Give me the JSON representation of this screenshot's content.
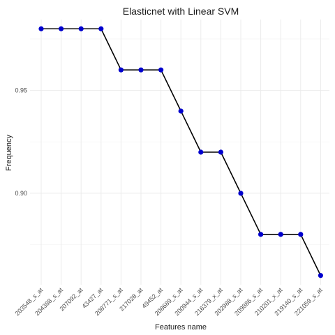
{
  "chart_data": {
    "type": "line",
    "title": "Elasticnet with Linear SVM",
    "xlabel": "Features name",
    "ylabel": "Frequency",
    "categories": [
      "203548_s_at",
      "204388_s_at",
      "207092_at",
      "43427_at",
      "208771_s_at",
      "217028_at",
      "49452_at",
      "208689_s_at",
      "200944_s_at",
      "216379_x_at",
      "202988_s_at",
      "209886_s_at",
      "210201_x_at",
      "219140_s_at",
      "221059_s_at"
    ],
    "series": [
      {
        "values": [
          0.98,
          0.98,
          0.98,
          0.98,
          0.96,
          0.96,
          0.96,
          0.94,
          0.92,
          0.92,
          0.9,
          0.88,
          0.88,
          0.88,
          0.86
        ]
      }
    ],
    "ylim": [
      0.8555,
      0.9845
    ],
    "yticks": [
      0.9,
      0.95
    ],
    "ytick_labels": [
      "0.90",
      "0.95"
    ],
    "grid": true,
    "legend": "none",
    "colors": {
      "point": "#0000cd",
      "line": "#000000",
      "grid": "#ebebeb"
    }
  }
}
